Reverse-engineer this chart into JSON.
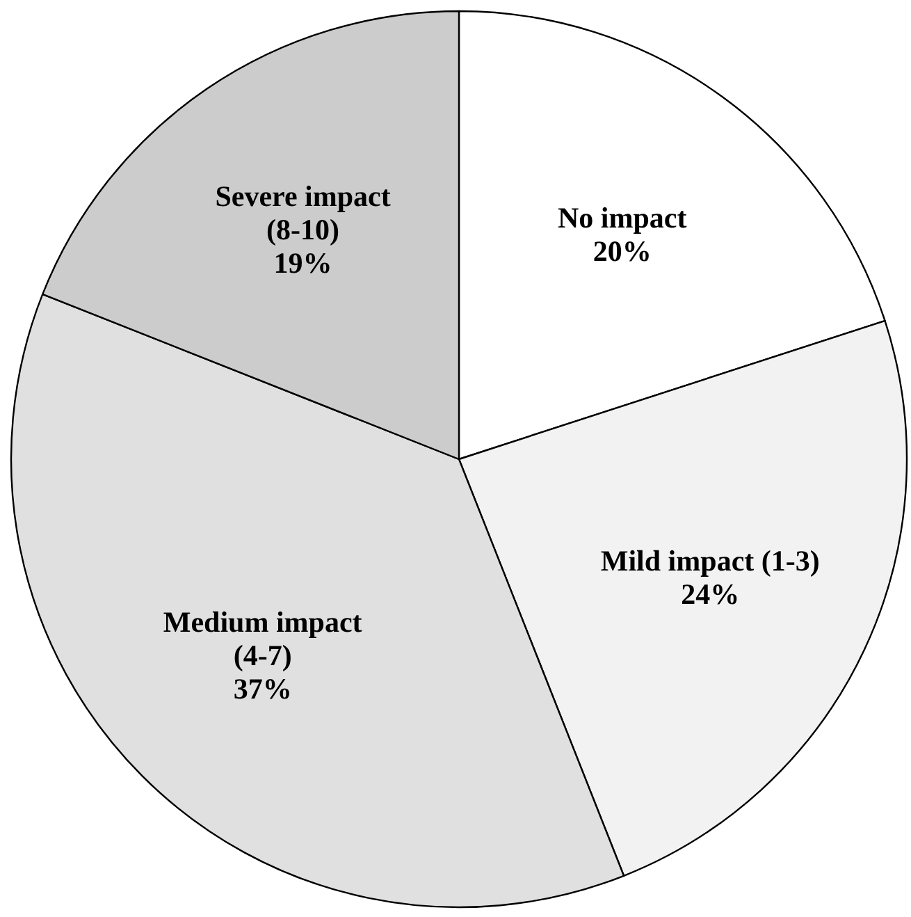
{
  "chart_data": {
    "type": "pie",
    "categories": [
      "No impact",
      "Mild impact (1-3)",
      "Medium impact (4-7)",
      "Severe impact (8-10)"
    ],
    "values": [
      20,
      24,
      37,
      19
    ],
    "colors": [
      "#ffffff",
      "#f2f2f2",
      "#e0e0e0",
      "#cccccc"
    ],
    "value_labels": [
      "20%",
      "24%",
      "37%",
      "19%"
    ]
  }
}
